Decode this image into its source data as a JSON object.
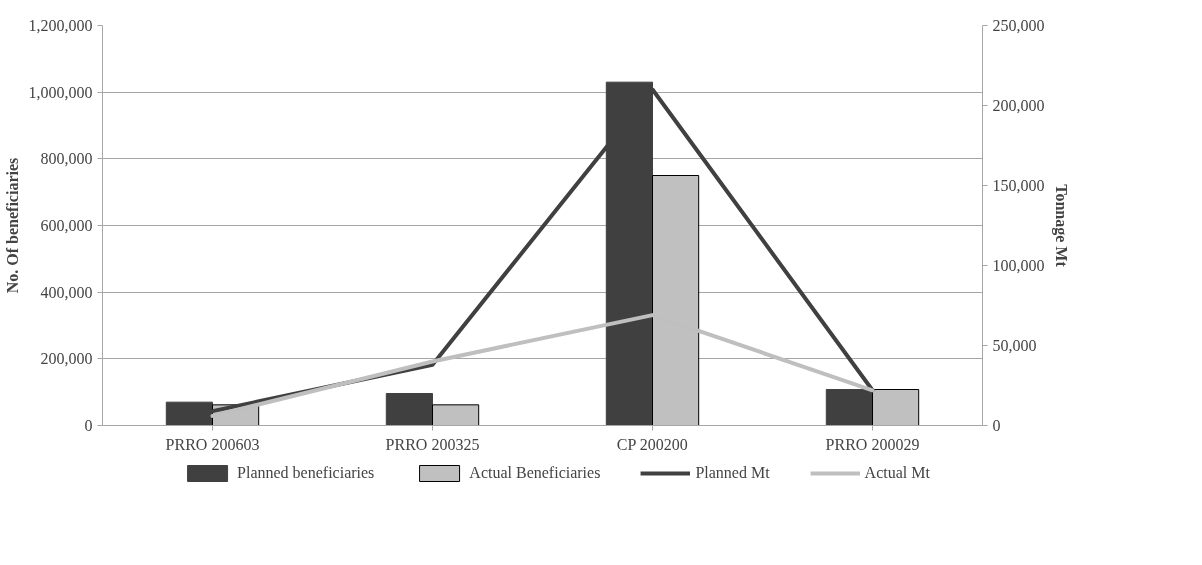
{
  "chart_data": {
    "type": "bar",
    "categories": [
      "PRRO 200603",
      "PRRO 200325",
      "CP 200200",
      "PRRO 200029"
    ],
    "series": [
      {
        "name": "Planned beneficiaries",
        "color": "#404040",
        "values": [
          70000,
          96000,
          1030000,
          108000
        ]
      },
      {
        "name": "Actual Beneficiaries",
        "color": "#c0c0c0",
        "values": [
          62000,
          62000,
          750000,
          108000
        ]
      },
      {
        "name": "Planned Mt",
        "type": "line",
        "axis": "y2",
        "color": "#404040",
        "values": [
          9000,
          38000,
          210000,
          22000
        ]
      },
      {
        "name": "Actual Mt",
        "type": "line",
        "axis": "y2",
        "color": "#bfbfbf",
        "values": [
          6000,
          40000,
          69000,
          22000
        ]
      }
    ],
    "ylabel": "No. Of beneficiaries",
    "y2label": "Tonnage Mt",
    "ylim": [
      0,
      1200000
    ],
    "yticks": [
      0,
      {
        "value": 200000,
        "label": "200,000"
      },
      {
        "value": 400000,
        "label": "400,000"
      },
      {
        "value": 600000,
        "label": "600,000"
      },
      {
        "value": 800000,
        "label": "800,000"
      },
      {
        "value": 1000000,
        "label": "1,000,000"
      },
      {
        "value": 1200000,
        "label": "1,200,000"
      }
    ],
    "y2lim": [
      0,
      250000
    ],
    "y2ticks": [
      0,
      {
        "value": 50000,
        "label": "50,000"
      },
      {
        "value": 100000,
        "label": "100,000"
      },
      {
        "value": 150000,
        "label": "150,000"
      },
      {
        "value": 200000,
        "label": "200,000"
      },
      {
        "value": 250000,
        "label": "250,000"
      }
    ],
    "grid": "y",
    "legend": "bottom"
  }
}
